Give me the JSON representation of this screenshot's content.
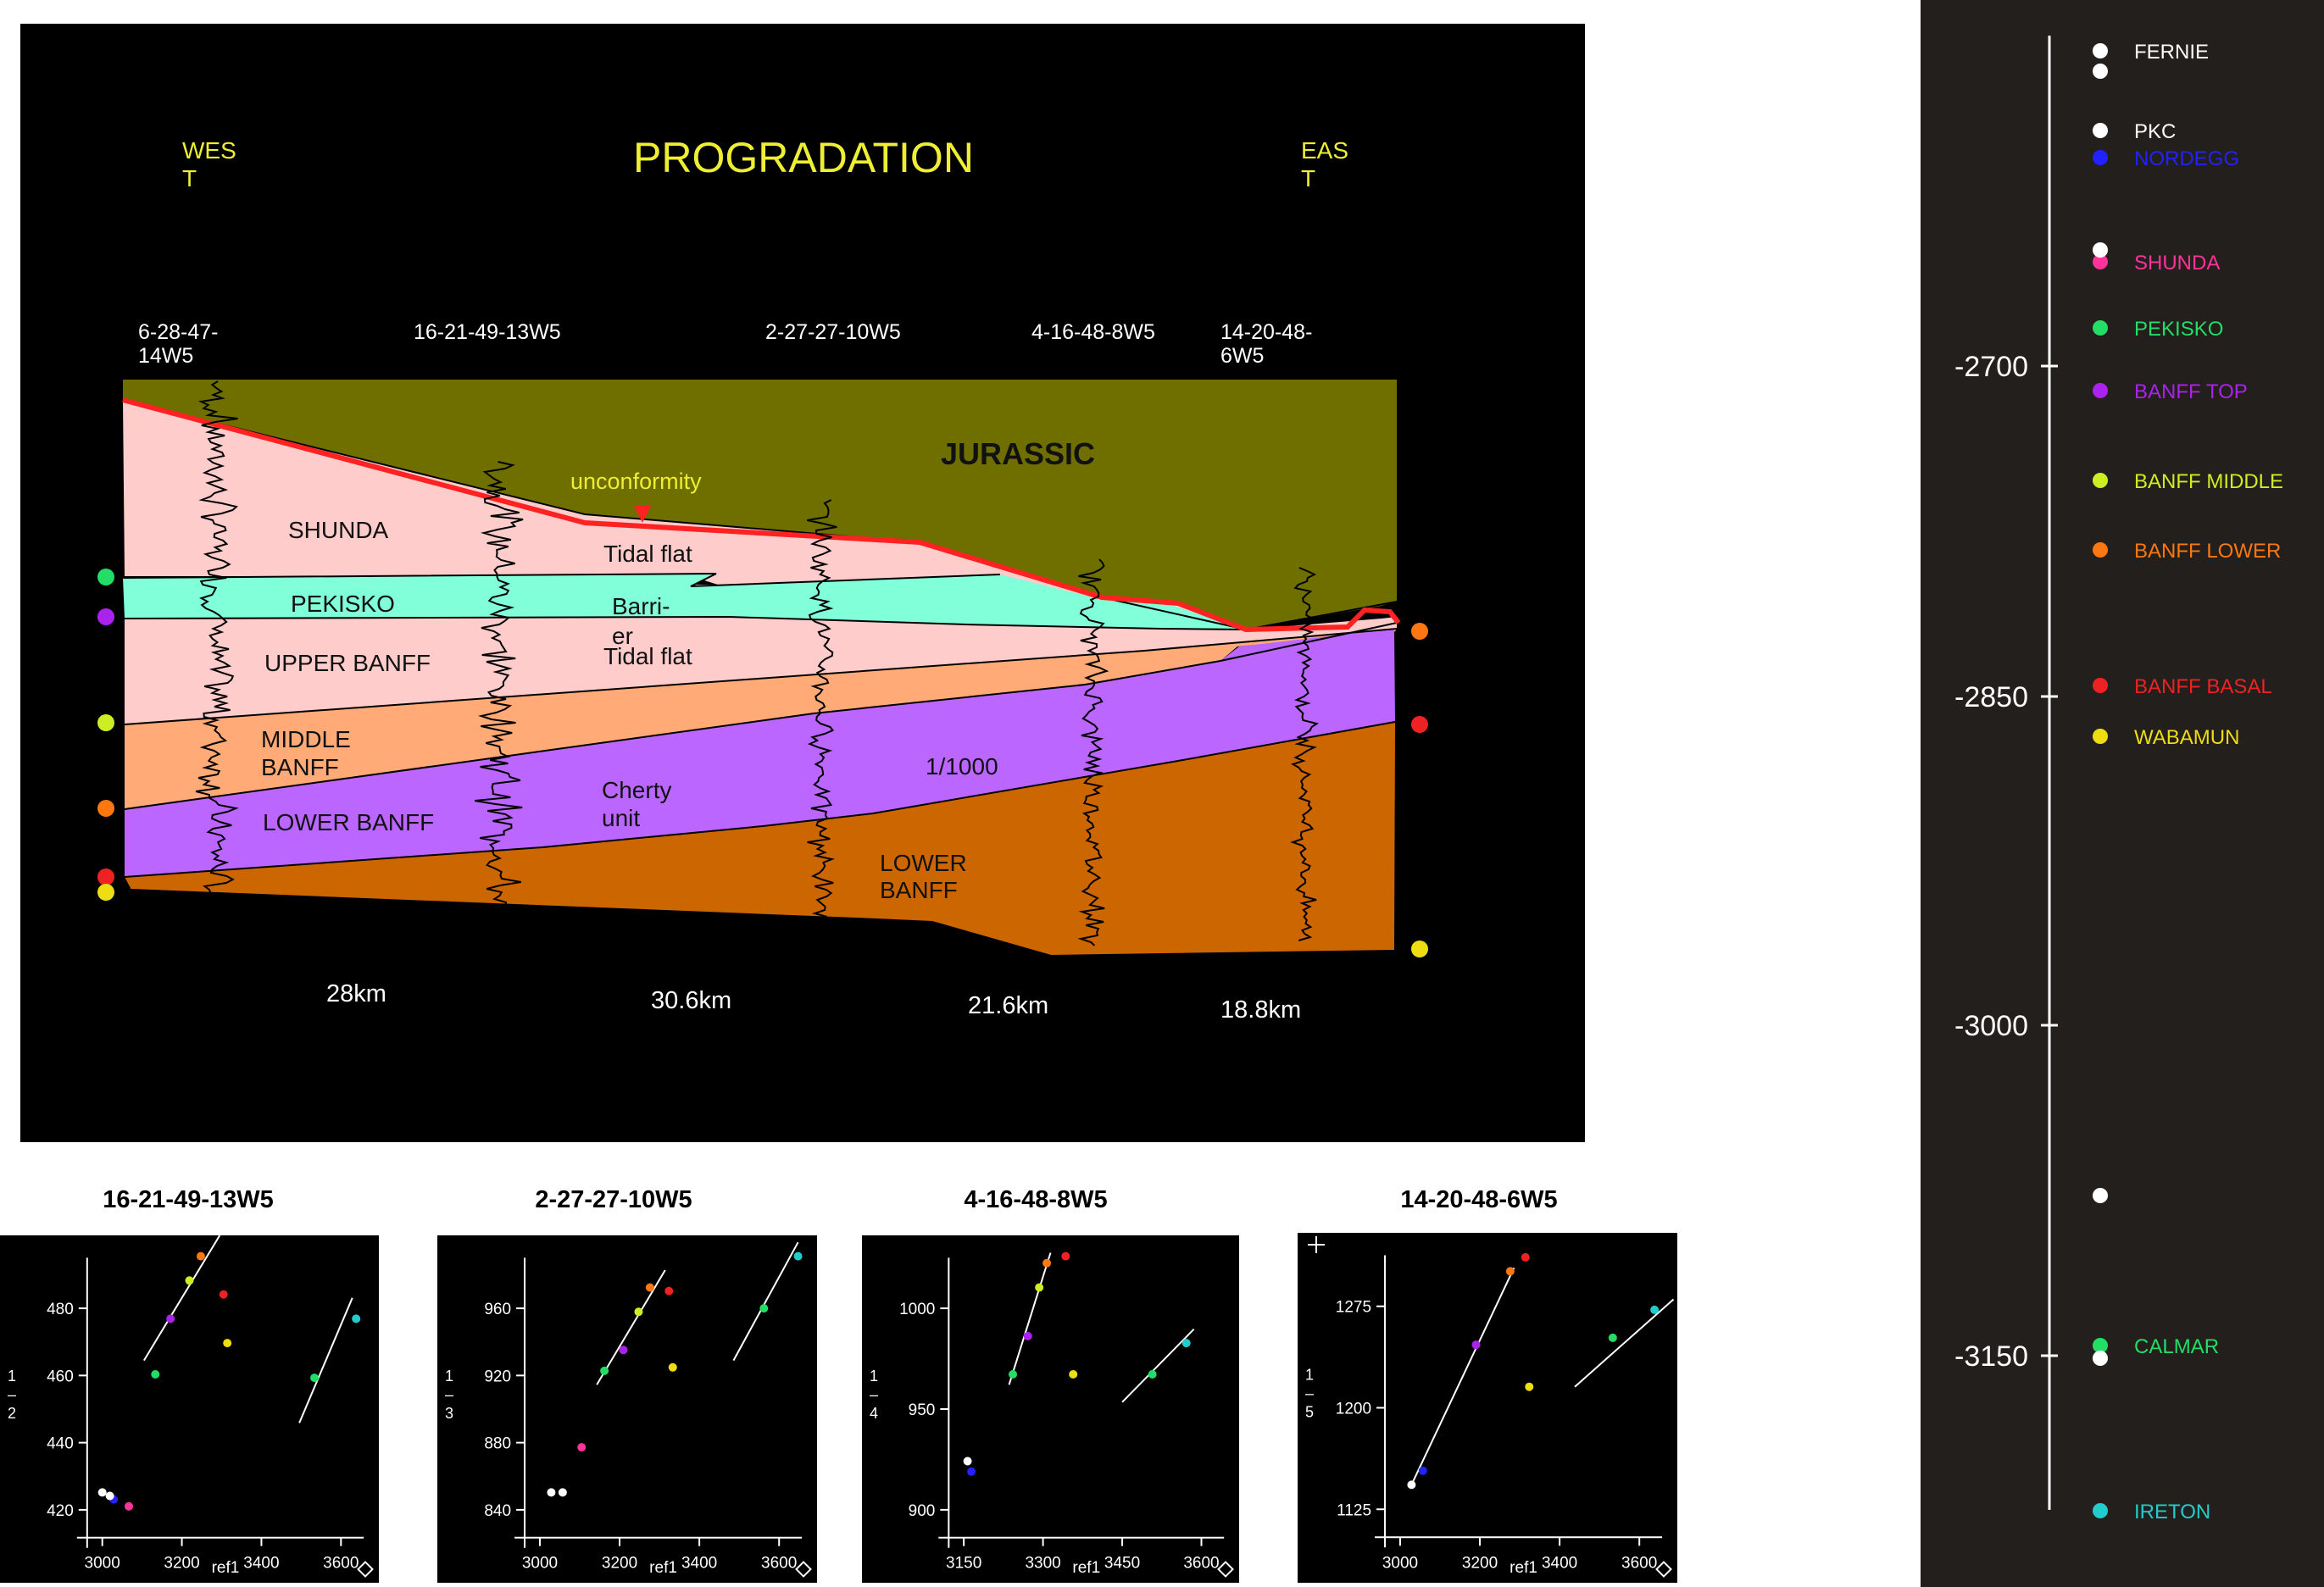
{
  "cross_section": {
    "title": "PROGRADATION",
    "west_label": [
      "WES",
      "T"
    ],
    "east_label": [
      "EAS",
      "T"
    ],
    "wells": [
      [
        "6-28-47-",
        "14W5"
      ],
      [
        "16-21-49-13W5"
      ],
      [
        "2-27-27-10W5"
      ],
      [
        "4-16-48-8W5"
      ],
      [
        "14-20-48-",
        "6W5"
      ]
    ],
    "distances": [
      "28km",
      "30.6km",
      "21.6km",
      "18.8km"
    ],
    "units": {
      "jurassic": "JURASSIC",
      "unconformity": "unconformity",
      "shunda": "SHUNDA",
      "tidal_flat_upper": "Tidal flat",
      "pekisko": "PEKISKO",
      "barrier": [
        "Barri-",
        "er"
      ],
      "upper_banff": "UPPER BANFF",
      "tidal_flat_lower": "Tidal flat",
      "middle_banff": [
        "MIDDLE",
        "BANFF"
      ],
      "lower_banff_left": "LOWER BANFF",
      "cherty": [
        "Cherty",
        "unit"
      ],
      "ratio": "1/1000",
      "lower_banff_right": [
        "LOWER",
        "BANFF"
      ]
    },
    "colors": {
      "jurassic": "#6f6f00",
      "shunda": "#ffcccc",
      "pekisko": "#80ffd9",
      "middle_banff": "#ffaa77",
      "lower_banff": "#bb66ff",
      "basal": "#cc6600",
      "unconformity": "#ff2222",
      "background": "#000000"
    }
  },
  "crossplots": [
    {
      "title": "16-21-49-13W5",
      "ylabel": [
        "1",
        "–",
        "2"
      ],
      "xlabel": "ref1",
      "xticks": [
        "3000",
        "3200",
        "3400",
        "3600"
      ],
      "yticks": [
        "420",
        "440",
        "460",
        "480"
      ]
    },
    {
      "title": "2-27-27-10W5",
      "ylabel": [
        "1",
        "–",
        "3"
      ],
      "xlabel": "ref1",
      "xticks": [
        "3000",
        "3200",
        "3400",
        "3600"
      ],
      "yticks": [
        "840",
        "880",
        "920",
        "960"
      ]
    },
    {
      "title": "4-16-48-8W5",
      "ylabel": [
        "1",
        "–",
        "4"
      ],
      "xlabel": "ref1",
      "xticks": [
        "3150",
        "3300",
        "3450",
        "3600"
      ],
      "yticks": [
        "900",
        "950",
        "1000"
      ]
    },
    {
      "title": "14-20-48-6W5",
      "ylabel": [
        "1",
        "–",
        "5"
      ],
      "xlabel": "ref1",
      "xticks": [
        "3000",
        "3200",
        "3400",
        "3600"
      ],
      "yticks": [
        "1125",
        "1200",
        "1275"
      ]
    }
  ],
  "legend": {
    "depth_ticks": [
      "-2700",
      "-2850",
      "-3000",
      "-3150"
    ],
    "entries": [
      {
        "label": "FERNIE",
        "color": "#ffffff"
      },
      {
        "label": "PKC",
        "color": "#ffffff"
      },
      {
        "label": "NORDEGG",
        "color": "#2222ff"
      },
      {
        "label": "SHUNDA",
        "color": "#ff3399"
      },
      {
        "label": "PEKISKO",
        "color": "#22dd66"
      },
      {
        "label": "BANFF TOP",
        "color": "#aa22ee"
      },
      {
        "label": "BANFF MIDDLE",
        "color": "#ccee22"
      },
      {
        "label": "BANFF LOWER",
        "color": "#ff7711"
      },
      {
        "label": "BANFF BASAL",
        "color": "#ee2222"
      },
      {
        "label": "WABAMUN",
        "color": "#eedd11"
      },
      {
        "label": "CALMAR",
        "color": "#22dd66"
      },
      {
        "label": "IRETON",
        "color": "#22cccc"
      }
    ]
  }
}
